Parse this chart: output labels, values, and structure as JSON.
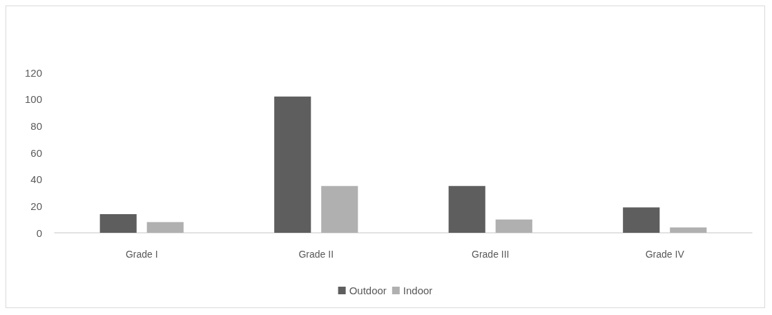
{
  "chart_data": {
    "type": "bar",
    "categories": [
      "Grade I",
      "Grade II",
      "Grade III",
      "Grade IV"
    ],
    "series": [
      {
        "name": "Outdoor",
        "color": "#5e5e5e",
        "values": [
          14,
          102,
          35,
          19
        ]
      },
      {
        "name": "Indoor",
        "color": "#b0b0b0",
        "values": [
          8,
          35,
          10,
          4
        ]
      }
    ],
    "ylim": [
      0,
      120
    ],
    "yticks": [
      0,
      20,
      40,
      60,
      80,
      100,
      120
    ],
    "grid": false,
    "legend": "bottom"
  }
}
